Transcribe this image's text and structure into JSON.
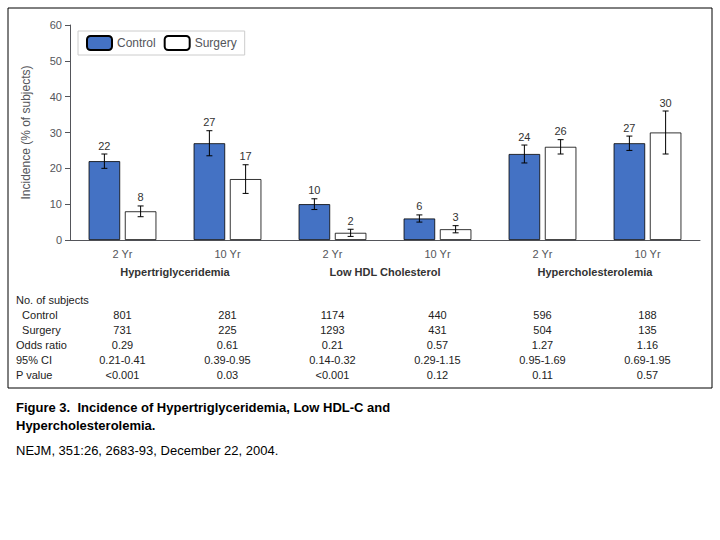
{
  "chart_data": {
    "type": "bar",
    "title": "Figure 3.  Incidence of Hypertriglyceridemia, Low HDL-C and\nHypercholesterolemia.",
    "subtitle": "NEJM, 351:26, 2683-93, December 22, 2004.",
    "ylabel": "Incidence (% of subjects)",
    "categories": [
      "2 Yr",
      "10 Yr",
      "2 Yr",
      "10 Yr",
      "2 Yr",
      "10 Yr"
    ],
    "groups": [
      "Hypertriglyceridemia",
      "Low HDL Cholesterol",
      "Hypercholesterolemia"
    ],
    "series": [
      {
        "name": "Control",
        "color": "#4472C4",
        "values": [
          22,
          27,
          10,
          6,
          24,
          27
        ],
        "errors": [
          2.0,
          3.5,
          1.5,
          1.0,
          2.5,
          2.0
        ]
      },
      {
        "name": "Surgery",
        "color": "#FFFFFF",
        "values": [
          8,
          17,
          2,
          3,
          26,
          30
        ],
        "errors": [
          1.5,
          4.0,
          1.0,
          1.0,
          2.0,
          6.0
        ]
      }
    ],
    "ylim": [
      0,
      60
    ],
    "yticks": [
      0,
      10,
      20,
      30,
      40,
      50,
      60
    ],
    "grid": false,
    "legend": "upper left",
    "data_labels": true,
    "table": [
      [
        "No. of subjects"
      ],
      [
        "  Control",
        "801",
        "281",
        "1174",
        "440",
        "596",
        "188"
      ],
      [
        "  Surgery",
        "731",
        "225",
        "1293",
        "431",
        "504",
        "135"
      ],
      [
        "Odds ratio",
        "0.29",
        "0.61",
        "0.21",
        "0.57",
        "1.27",
        "1.16"
      ],
      [
        "95% CI",
        "0.21-0.41",
        "0.39-0.95",
        "0.14-0.32",
        "0.29-1.15",
        "0.95-1.69",
        "0.69-1.95"
      ],
      [
        "P value",
        "<0.001",
        "0.03",
        "<0.001",
        "0.12",
        "0.11",
        "0.57"
      ]
    ]
  }
}
